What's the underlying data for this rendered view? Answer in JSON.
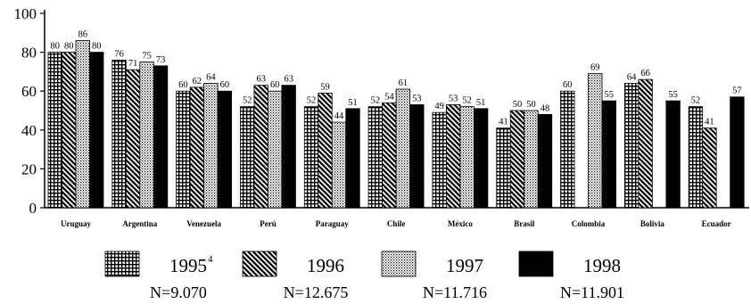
{
  "chart_data": {
    "type": "bar",
    "categories": [
      "Uruguay",
      "Argentina",
      "Venezuela",
      "Perú",
      "Paraguay",
      "Chile",
      "México",
      "Brasil",
      "Colombia",
      "Bolivia",
      "Ecuador"
    ],
    "series": [
      {
        "name": "1995",
        "sup": "4",
        "n": "N=9.070",
        "pattern": "grid",
        "values": [
          80,
          76,
          60,
          52,
          52,
          52,
          49,
          41,
          60,
          64,
          52
        ]
      },
      {
        "name": "1996",
        "n": "N=12.675",
        "pattern": "diagonal",
        "values": [
          80,
          71,
          62,
          63,
          59,
          54,
          53,
          50,
          null,
          66,
          41
        ]
      },
      {
        "name": "1997",
        "n": "N=11.716",
        "pattern": "dots",
        "values": [
          86,
          75,
          64,
          60,
          44,
          61,
          52,
          50,
          69,
          null,
          null
        ]
      },
      {
        "name": "1998",
        "n": "N=11.901",
        "pattern": "solid",
        "values": [
          80,
          73,
          60,
          63,
          51,
          53,
          51,
          48,
          55,
          55,
          57
        ]
      }
    ],
    "title": "",
    "xlabel": "",
    "ylabel": "",
    "ylim": [
      0,
      100
    ],
    "yticks": [
      "0",
      "20",
      "40",
      "60",
      "80",
      "100"
    ],
    "grid": false,
    "legend_position": "bottom",
    "colors": {
      "solid": "#000000",
      "background": "#ffffff"
    }
  }
}
